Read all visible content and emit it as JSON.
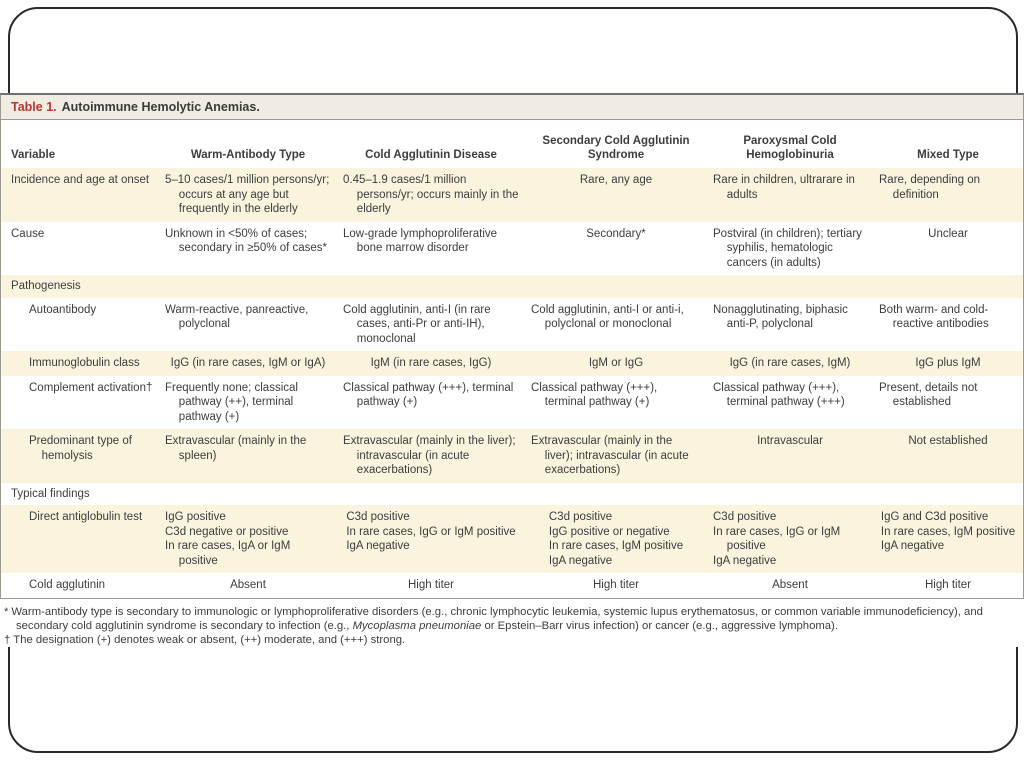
{
  "table": {
    "title_label": "Table 1.",
    "title_text": "Autoimmune Hemolytic Anemias.",
    "columns": [
      "Variable",
      "Warm-Antibody Type",
      "Cold Agglutinin Disease",
      "Secondary Cold Agglutinin Syndrome",
      "Paroxysmal Cold Hemoglobinuria",
      "Mixed Type"
    ],
    "rows": [
      {
        "label": "Incidence and age at onset",
        "section": false,
        "indent": false,
        "cells": [
          [
            "5–10 cases/1 million persons/yr; occurs at any age but frequently in the elderly"
          ],
          [
            "0.45–1.9 cases/1 million persons/yr; occurs mainly in the elderly"
          ],
          [
            "Rare, any age"
          ],
          [
            "Rare in children, ultrarare in adults"
          ],
          [
            "Rare, depending on definition"
          ]
        ]
      },
      {
        "label": "Cause",
        "section": false,
        "indent": false,
        "cells": [
          [
            "Unknown in <50% of cases; secondary in ≥50% of cases*"
          ],
          [
            "Low-grade lymphoproliferative bone marrow disorder"
          ],
          [
            "Secondary*"
          ],
          [
            "Postviral (in children); tertiary syphilis, hematologic cancers (in adults)"
          ],
          [
            "Unclear"
          ]
        ]
      },
      {
        "label": "Pathogenesis",
        "section": true,
        "indent": false,
        "cells": []
      },
      {
        "label": "Autoantibody",
        "section": false,
        "indent": true,
        "cells": [
          [
            "Warm-reactive, panreactive, polyclonal"
          ],
          [
            "Cold agglutinin, anti-I (in rare cases, anti-Pr or anti-IH), monoclonal"
          ],
          [
            "Cold agglutinin, anti-I or anti-i, polyclonal or monoclonal"
          ],
          [
            "Nonagglutinating, biphasic anti-P, polyclonal"
          ],
          [
            "Both warm- and cold-reactive antibodies"
          ]
        ]
      },
      {
        "label": "Immunoglobulin class",
        "section": false,
        "indent": true,
        "cells": [
          [
            "IgG (in rare cases, IgM or IgA)"
          ],
          [
            "IgM (in rare cases, IgG)"
          ],
          [
            "IgM or IgG"
          ],
          [
            "IgG (in rare cases, IgM)"
          ],
          [
            "IgG plus IgM"
          ]
        ]
      },
      {
        "label": "Complement activation†",
        "section": false,
        "indent": true,
        "cells": [
          [
            "Frequently none; classical pathway (++), terminal pathway (+)"
          ],
          [
            "Classical pathway (+++), terminal pathway (+)"
          ],
          [
            "Classical pathway (+++), terminal pathway (+)"
          ],
          [
            "Classical pathway (+++), terminal pathway (+++)"
          ],
          [
            "Present, details not established"
          ]
        ]
      },
      {
        "label": "Predominant type of hemolysis",
        "section": false,
        "indent": true,
        "cells": [
          [
            "Extravascular (mainly in the spleen)"
          ],
          [
            "Extravascular (mainly in the liver); intravascular (in acute exacerbations)"
          ],
          [
            "Extravascular (mainly in the liver); intravascular (in acute exacerbations)"
          ],
          [
            "Intravascular"
          ],
          [
            "Not established"
          ]
        ]
      },
      {
        "label": "Typical findings",
        "section": true,
        "indent": false,
        "cells": []
      },
      {
        "label": "Direct antiglobulin test",
        "section": false,
        "indent": true,
        "cells": [
          [
            "IgG positive",
            "C3d negative or positive",
            "In rare cases, IgA or IgM positive"
          ],
          [
            "C3d positive",
            "In rare cases, IgG or IgM positive",
            "IgA negative"
          ],
          [
            "C3d positive",
            "IgG positive or negative",
            "In rare cases, IgM positive",
            "IgA negative"
          ],
          [
            "C3d positive",
            "In rare cases, IgG or IgM positive",
            "IgA negative"
          ],
          [
            "IgG and C3d positive",
            "In rare cases, IgM positive",
            "IgA negative"
          ]
        ]
      },
      {
        "label": "Cold agglutinin",
        "section": false,
        "indent": true,
        "cells": [
          [
            "Absent"
          ],
          [
            "High titer"
          ],
          [
            "High titer"
          ],
          [
            "Absent"
          ],
          [
            "High titer"
          ]
        ]
      }
    ]
  },
  "footnotes": [
    {
      "marker": "*",
      "segments": [
        {
          "t": "Warm-antibody type is secondary to immunologic or lymphoproliferative disorders (e.g., chronic lymphocytic leukemia, systemic lupus erythematosus, or common variable immunodeficiency), and secondary cold agglutinin syndrome is secondary to infection (e.g., ",
          "i": false
        },
        {
          "t": "Mycoplasma pneumoniae",
          "i": true
        },
        {
          "t": " or Epstein–Barr virus infection) or cancer (e.g., aggressive lymphoma).",
          "i": false
        }
      ]
    },
    {
      "marker": "†",
      "segments": [
        {
          "t": "The designation (+) denotes weak or absent, (++) moderate, and (+++) strong.",
          "i": false
        }
      ]
    }
  ],
  "colors": {
    "title_accent_red": "#b5372f",
    "title_bar_bg": "#f0ece1",
    "row_stripe_cream": "#faf3de",
    "rule_gray": "#9a9a8e",
    "heavy_rule_gray": "#6f6f6f",
    "text": "#3d3d3d",
    "frame_border": "#2a2a2a"
  }
}
